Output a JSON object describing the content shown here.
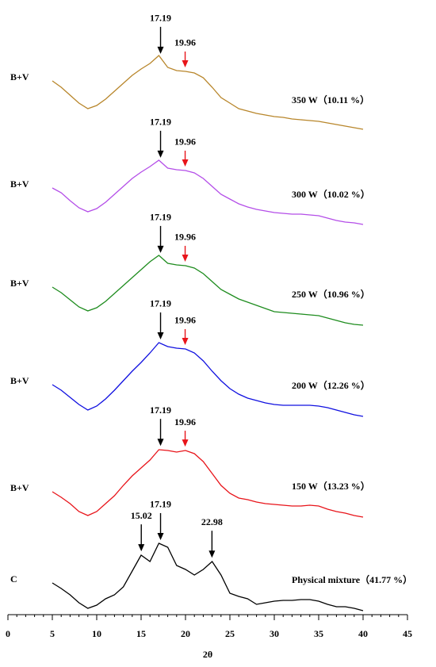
{
  "chart_data": {
    "type": "line",
    "x": [
      5,
      6,
      7,
      8,
      9,
      10,
      11,
      12,
      13,
      14,
      15,
      16,
      17,
      18,
      19,
      20,
      21,
      22,
      23,
      24,
      25,
      26,
      27,
      28,
      29,
      30,
      31,
      32,
      33,
      34,
      35,
      36,
      37,
      38,
      39,
      40
    ],
    "xlim": [
      0,
      45
    ],
    "xticks": [
      0,
      5,
      10,
      15,
      20,
      25,
      30,
      35,
      40,
      45
    ],
    "ylim": [
      0,
      775
    ],
    "xlabel": "2θ",
    "series": [
      {
        "name": "350 W（10.11 %）",
        "tag": "B+V",
        "color": "#b8862b",
        "values": [
          673,
          665,
          655,
          645,
          638,
          642,
          650,
          660,
          670,
          680,
          688,
          695,
          705,
          690,
          686,
          685,
          683,
          677,
          665,
          652,
          645,
          638,
          635,
          632,
          630,
          628,
          627,
          625,
          624,
          623,
          622,
          620,
          618,
          616,
          614,
          612
        ],
        "peaks": [
          {
            "x": 17.19,
            "color": "#000000"
          },
          {
            "x": 19.96,
            "color": "#e8141a"
          }
        ]
      },
      {
        "name": "300 W（10.02 %）",
        "tag": "B+V",
        "color": "#b44ee8",
        "values": [
          538,
          532,
          522,
          513,
          508,
          512,
          520,
          530,
          540,
          550,
          558,
          565,
          573,
          563,
          561,
          560,
          557,
          550,
          540,
          530,
          524,
          518,
          514,
          511,
          509,
          507,
          506,
          505,
          505,
          504,
          503,
          500,
          497,
          495,
          494,
          492
        ],
        "peaks": [
          {
            "x": 17.19,
            "color": "#000000"
          },
          {
            "x": 19.96,
            "color": "#e8141a"
          }
        ]
      },
      {
        "name": "250 W（10.96 %）",
        "tag": "B+V",
        "color": "#1e8c1e",
        "values": [
          413,
          406,
          397,
          388,
          383,
          387,
          395,
          405,
          415,
          425,
          435,
          445,
          453,
          443,
          441,
          440,
          437,
          430,
          420,
          410,
          404,
          398,
          394,
          390,
          386,
          382,
          381,
          380,
          379,
          378,
          377,
          374,
          371,
          368,
          366,
          365
        ],
        "peaks": [
          {
            "x": 17.19,
            "color": "#000000"
          },
          {
            "x": 19.96,
            "color": "#e8141a"
          }
        ]
      },
      {
        "name": "200 W（12.26 %）",
        "tag": "B+V",
        "color": "#1010e0",
        "values": [
          290,
          283,
          274,
          265,
          258,
          263,
          272,
          283,
          295,
          307,
          318,
          330,
          343,
          338,
          336,
          335,
          330,
          320,
          307,
          295,
          285,
          278,
          273,
          270,
          267,
          265,
          264,
          264,
          264,
          264,
          263,
          261,
          258,
          255,
          252,
          250
        ],
        "peaks": [
          {
            "x": 17.19,
            "color": "#000000"
          },
          {
            "x": 19.96,
            "color": "#e8141a"
          }
        ]
      },
      {
        "name": "150 W（13.23 %）",
        "tag": "B+V",
        "color": "#e8141a",
        "values": [
          155,
          148,
          140,
          130,
          125,
          130,
          140,
          150,
          163,
          175,
          185,
          195,
          208,
          207,
          205,
          207,
          203,
          193,
          178,
          163,
          153,
          147,
          145,
          142,
          140,
          139,
          138,
          137,
          137,
          138,
          137,
          133,
          130,
          128,
          125,
          123
        ],
        "peaks": [
          {
            "x": 17.19,
            "color": "#000000"
          },
          {
            "x": 19.96,
            "color": "#e8141a"
          }
        ]
      },
      {
        "name": "Physical mixture（41.77 %）",
        "tag": "C",
        "color": "#000000",
        "values": [
          40,
          33,
          25,
          15,
          8,
          12,
          20,
          25,
          35,
          55,
          75,
          67,
          90,
          85,
          62,
          57,
          50,
          57,
          67,
          50,
          27,
          23,
          20,
          13,
          15,
          17,
          18,
          18,
          19,
          19,
          17,
          13,
          10,
          10,
          8,
          5
        ],
        "peaks": [
          {
            "x": 15.02,
            "color": "#000000"
          },
          {
            "x": 17.19,
            "color": "#000000"
          },
          {
            "x": 22.98,
            "color": "#000000"
          }
        ]
      }
    ]
  }
}
